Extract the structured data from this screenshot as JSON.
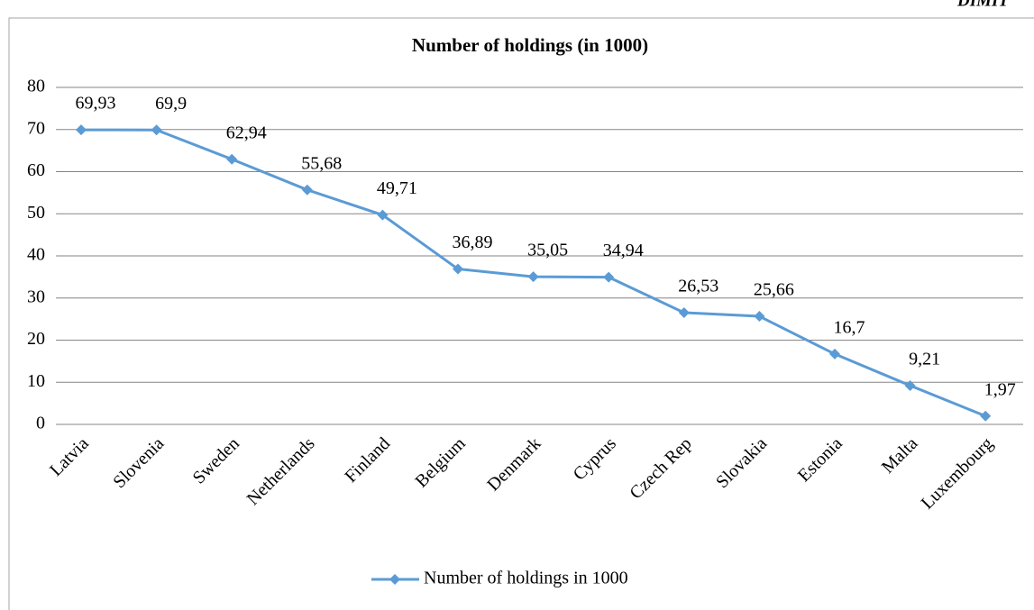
{
  "header": "DIMIT",
  "chart_data": {
    "type": "line",
    "title": "Number of holdings (in 1000)",
    "categories": [
      "Latvia",
      "Slovenia",
      "Sweden",
      "Netherlands",
      "Finland",
      "Belgium",
      "Denmark",
      "Cyprus",
      "Czech Rep",
      "Slovakia",
      "Estonia",
      "Malta",
      "Luxembourg"
    ],
    "series": [
      {
        "name": "Number of holdings in 1000",
        "color": "#5b9bd5",
        "values": [
          69.93,
          69.9,
          62.94,
          55.68,
          49.71,
          36.89,
          35.05,
          34.94,
          26.53,
          25.66,
          16.7,
          9.21,
          1.97
        ],
        "value_labels": [
          "69,93",
          "69,9",
          "62,94",
          "55,68",
          "49,71",
          "36,89",
          "35,05",
          "34,94",
          "26,53",
          "25,66",
          "16,7",
          "9,21",
          "1,97"
        ]
      }
    ],
    "ylim": [
      0,
      80
    ],
    "yticks": [
      0,
      10,
      20,
      30,
      40,
      50,
      60,
      70,
      80
    ],
    "grid": true,
    "legend": "bottom"
  }
}
